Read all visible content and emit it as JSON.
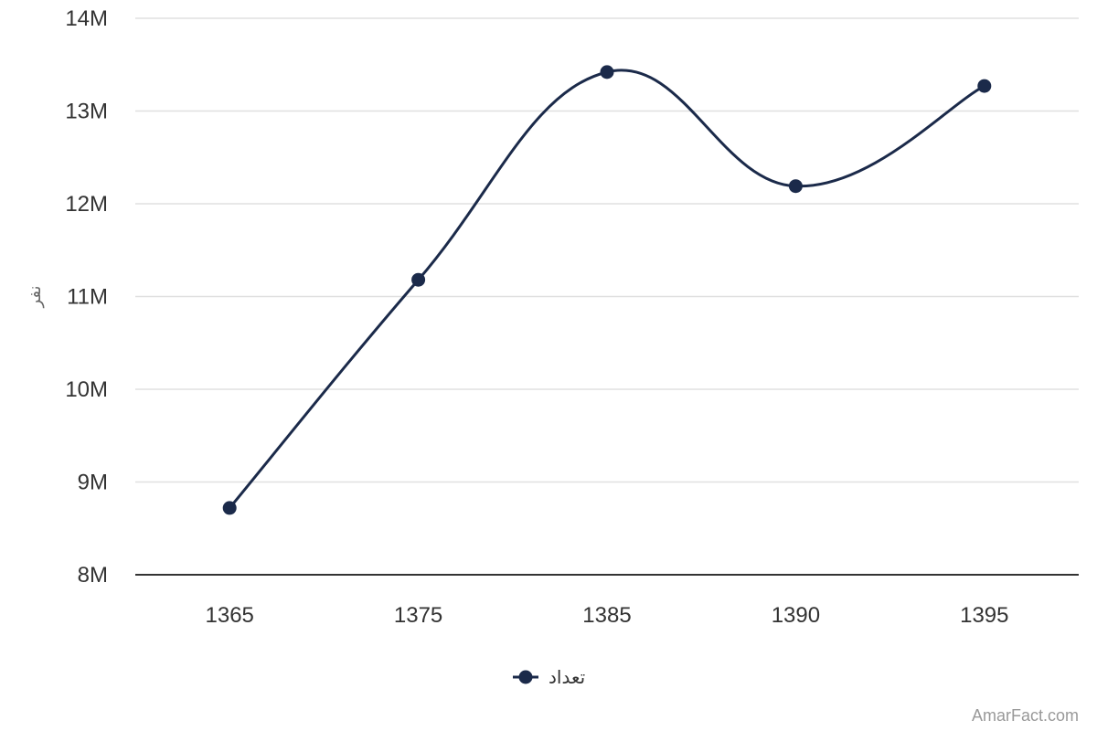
{
  "chart_data": {
    "type": "line",
    "smooth": true,
    "categories": [
      "1365",
      "1375",
      "1385",
      "1390",
      "1395"
    ],
    "series": [
      {
        "name": "تعداد",
        "values": [
          8720000,
          11180000,
          13420000,
          12190000,
          13270000
        ],
        "color": "#1b2a4a"
      }
    ],
    "ylim": [
      8000000,
      14000000
    ],
    "yticks": [
      {
        "value": 8000000,
        "label": "8M"
      },
      {
        "value": 9000000,
        "label": "9M"
      },
      {
        "value": 10000000,
        "label": "10M"
      },
      {
        "value": 11000000,
        "label": "11M"
      },
      {
        "value": 12000000,
        "label": "12M"
      },
      {
        "value": 13000000,
        "label": "13M"
      },
      {
        "value": 14000000,
        "label": "14M"
      }
    ],
    "ylabel": "نفر",
    "xlabel": "",
    "title": "",
    "grid": true,
    "legend_position": "bottom-center"
  },
  "colors": {
    "series": "#1b2a4a",
    "grid": "#e0e0e0",
    "axis": "#333333"
  },
  "credit": "AmarFact.com"
}
